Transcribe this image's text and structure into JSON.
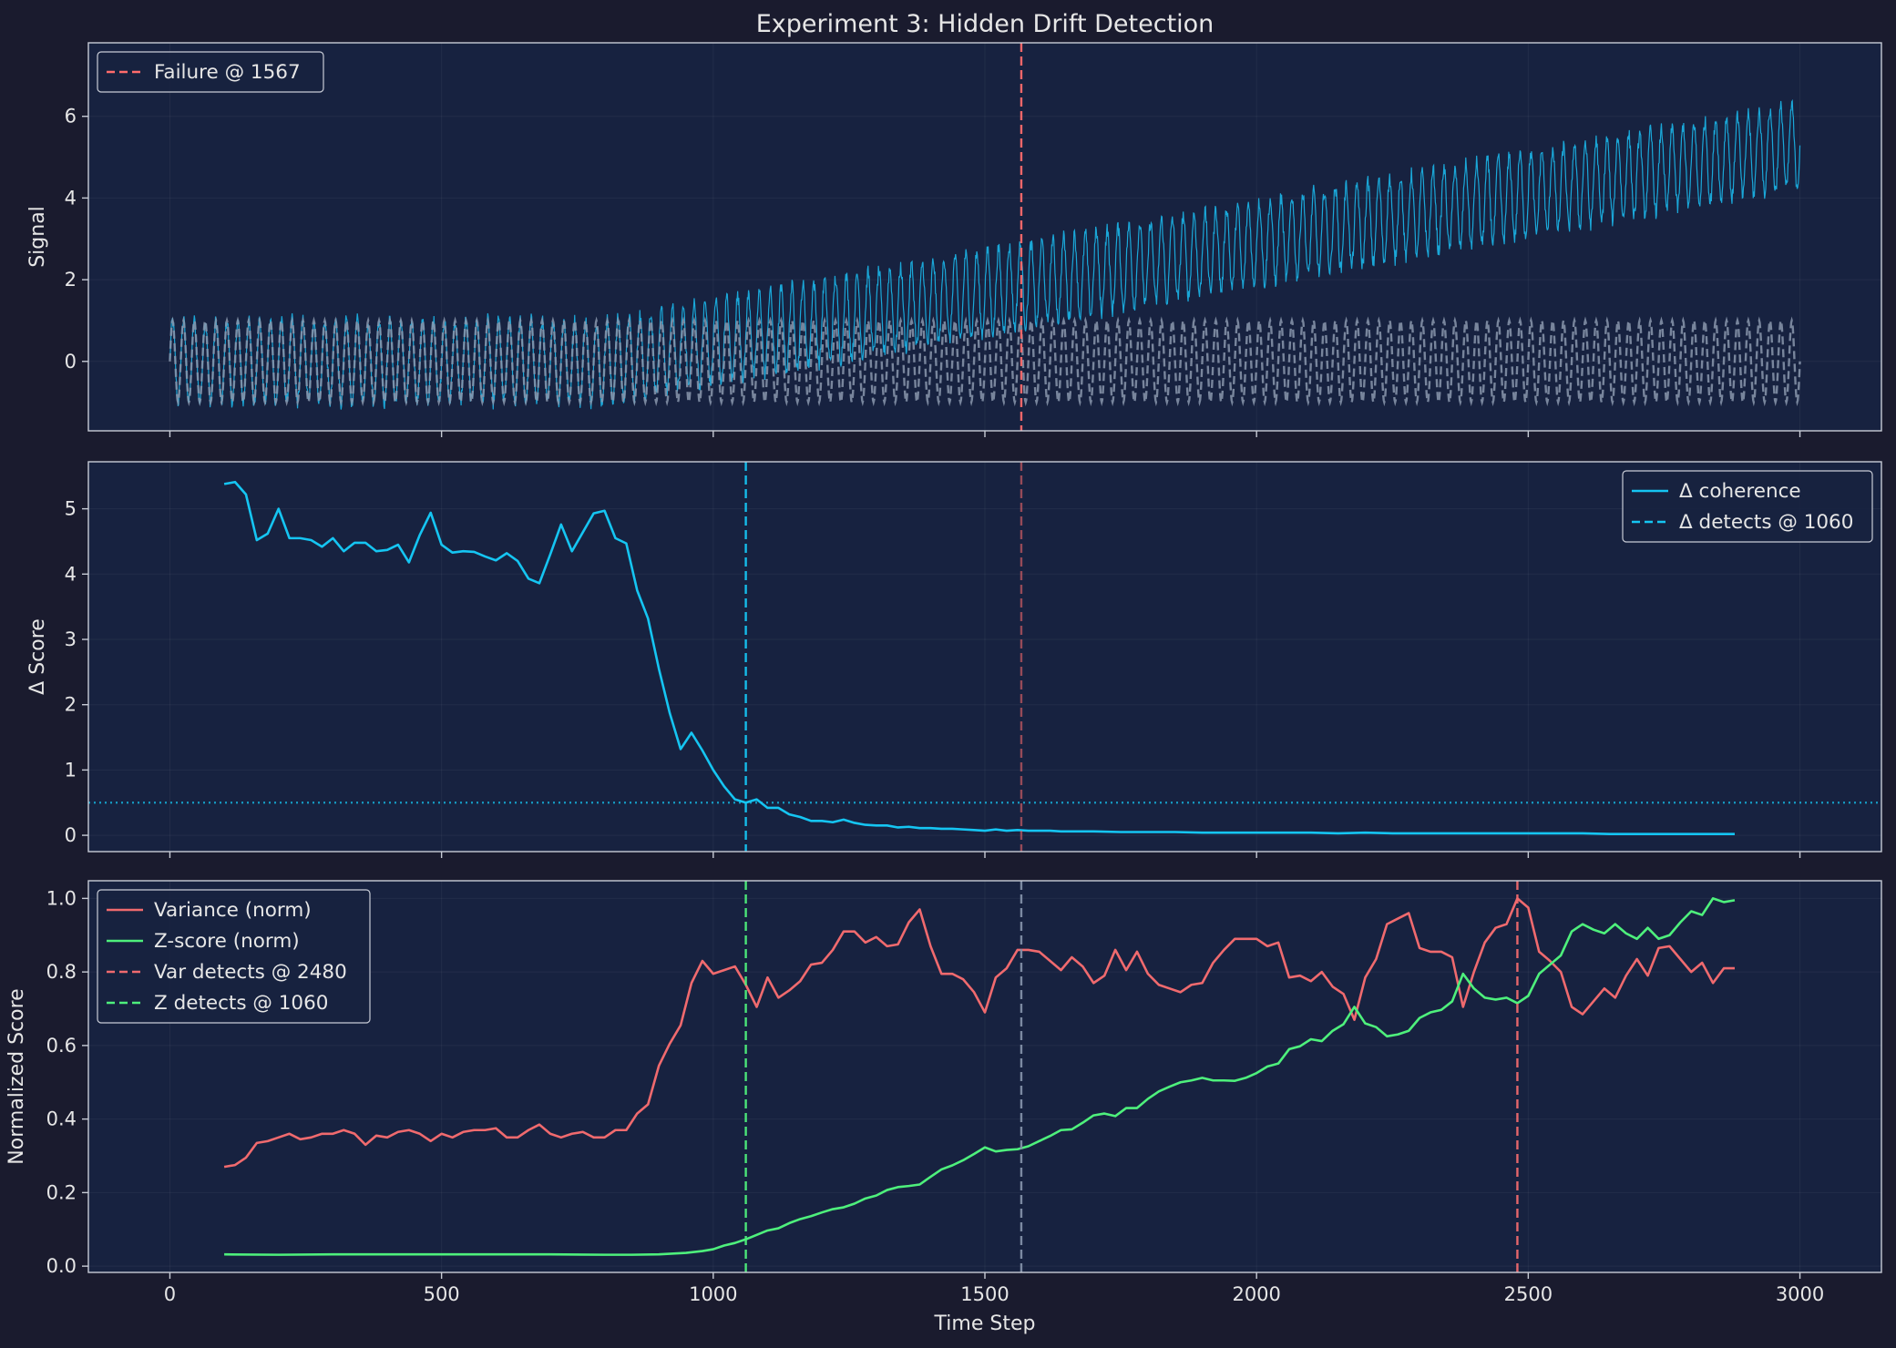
{
  "chart_data": {
    "title": "Experiment 3: Hidden Drift Detection",
    "xlabel": "Time Step",
    "xlim": [
      -150,
      3150
    ],
    "xticks": [
      0,
      500,
      1000,
      1500,
      2000,
      2500,
      3000
    ],
    "colors": {
      "background": "#1a1b2e",
      "axes": "#172240",
      "signal": "#1aa7d8",
      "baseline": "#8a97ad",
      "failure": "#ff6b6b",
      "delta": "#15c5f2",
      "variance": "#f06a6e",
      "zscore": "#4ef07c",
      "neutral": "#8290a8"
    },
    "panels": [
      {
        "type": "line",
        "ylabel": "Signal",
        "ylim": [
          -1.7,
          7.8
        ],
        "yticks": [
          0,
          2,
          4,
          6
        ],
        "legend_position": "top-left",
        "legend": [
          {
            "label": "Failure @ 1567",
            "style": "dashed",
            "color_key": "failure"
          }
        ],
        "generated_series": [
          {
            "name": "",
            "kind": "drifting-sine",
            "x_start": 0,
            "x_end": 3000,
            "period": 20,
            "amplitude": 1.0,
            "drift_start": 800,
            "drift_end": 3000,
            "drift_to": 5.3,
            "noise": 0.18,
            "style": "solid",
            "color_key": "signal"
          },
          {
            "name": "",
            "kind": "sine",
            "x_start": 0,
            "x_end": 3000,
            "period": 20,
            "amplitude": 1.0,
            "style": "dashed",
            "color_key": "baseline"
          }
        ],
        "vlines": [
          {
            "x": 1567,
            "style": "dashed",
            "color_key": "failure"
          }
        ],
        "hlines": []
      },
      {
        "type": "line",
        "ylabel": "Δ Score",
        "ylim": [
          -0.25,
          5.72
        ],
        "yticks": [
          0,
          1,
          2,
          3,
          4,
          5
        ],
        "legend_position": "top-right",
        "legend": [
          {
            "label": "Δ coherence",
            "style": "solid",
            "color_key": "delta"
          },
          {
            "label": "Δ detects @ 1060",
            "style": "dashed",
            "color_key": "delta"
          }
        ],
        "series": [
          {
            "name": "Δ coherence",
            "color_key": "delta",
            "x": [
              100,
              120,
              140,
              160,
              180,
              200,
              220,
              240,
              260,
              280,
              300,
              320,
              340,
              360,
              380,
              400,
              420,
              440,
              460,
              480,
              500,
              520,
              540,
              560,
              580,
              600,
              620,
              640,
              660,
              680,
              700,
              720,
              740,
              760,
              780,
              800,
              820,
              840,
              860,
              880,
              900,
              920,
              940,
              960,
              980,
              1000,
              1020,
              1040,
              1060,
              1080,
              1100,
              1120,
              1140,
              1160,
              1180,
              1200,
              1220,
              1240,
              1260,
              1280,
              1300,
              1320,
              1340,
              1360,
              1380,
              1400,
              1420,
              1440,
              1460,
              1480,
              1500,
              1520,
              1540,
              1560,
              1580,
              1600,
              1620,
              1640,
              1660,
              1680,
              1700,
              1750,
              1800,
              1850,
              1900,
              1950,
              2000,
              2050,
              2100,
              2150,
              2200,
              2250,
              2300,
              2350,
              2400,
              2450,
              2500,
              2550,
              2600,
              2650,
              2700,
              2750,
              2800,
              2850,
              2880
            ],
            "y": [
              5.38,
              5.41,
              5.22,
              4.52,
              4.62,
              5.0,
              4.55,
              4.55,
              4.52,
              4.42,
              4.55,
              4.35,
              4.48,
              4.48,
              4.35,
              4.37,
              4.45,
              4.18,
              4.6,
              4.94,
              4.45,
              4.33,
              4.35,
              4.34,
              4.27,
              4.21,
              4.32,
              4.2,
              3.93,
              3.86,
              4.3,
              4.76,
              4.35,
              4.64,
              4.93,
              4.97,
              4.55,
              4.47,
              3.75,
              3.32,
              2.55,
              1.87,
              1.32,
              1.57,
              1.3,
              1.0,
              0.75,
              0.55,
              0.5,
              0.55,
              0.42,
              0.42,
              0.32,
              0.28,
              0.22,
              0.22,
              0.2,
              0.24,
              0.19,
              0.16,
              0.15,
              0.15,
              0.12,
              0.13,
              0.11,
              0.11,
              0.1,
              0.1,
              0.09,
              0.08,
              0.07,
              0.09,
              0.07,
              0.08,
              0.07,
              0.07,
              0.07,
              0.06,
              0.06,
              0.06,
              0.06,
              0.05,
              0.05,
              0.05,
              0.04,
              0.04,
              0.04,
              0.04,
              0.04,
              0.03,
              0.04,
              0.03,
              0.03,
              0.03,
              0.03,
              0.03,
              0.03,
              0.03,
              0.03,
              0.02,
              0.02,
              0.02,
              0.02,
              0.02,
              0.02
            ]
          }
        ],
        "vlines": [
          {
            "x": 1060,
            "style": "dashed",
            "color_key": "delta"
          },
          {
            "x": 1567,
            "style": "dashed",
            "color_key": "failure",
            "faded": true
          }
        ],
        "hlines": [
          {
            "y": 0.5,
            "style": "dotted",
            "color_key": "delta"
          }
        ]
      },
      {
        "type": "line",
        "ylabel": "Normalized Score",
        "ylim": [
          -0.017,
          1.048
        ],
        "yticks": [
          0.0,
          0.2,
          0.4,
          0.6,
          0.8,
          1.0
        ],
        "ytick_labels": [
          "0.0",
          "0.2",
          "0.4",
          "0.6",
          "0.8",
          "1.0"
        ],
        "legend_position": "top-left",
        "legend": [
          {
            "label": "Variance (norm)",
            "style": "solid",
            "color_key": "variance"
          },
          {
            "label": "Z-score (norm)",
            "style": "solid",
            "color_key": "zscore"
          },
          {
            "label": "Var detects @ 2480",
            "style": "dashed",
            "color_key": "variance"
          },
          {
            "label": "Z detects @ 1060",
            "style": "dashed",
            "color_key": "zscore"
          }
        ],
        "series": [
          {
            "name": "Variance (norm)",
            "color_key": "variance",
            "x": [
              100,
              120,
              140,
              160,
              180,
              200,
              220,
              240,
              260,
              280,
              300,
              320,
              340,
              360,
              380,
              400,
              420,
              440,
              460,
              480,
              500,
              520,
              540,
              560,
              580,
              600,
              620,
              640,
              660,
              680,
              700,
              720,
              740,
              760,
              780,
              800,
              820,
              840,
              860,
              880,
              900,
              920,
              940,
              960,
              980,
              1000,
              1020,
              1040,
              1060,
              1080,
              1100,
              1120,
              1140,
              1160,
              1180,
              1200,
              1220,
              1240,
              1260,
              1280,
              1300,
              1320,
              1340,
              1360,
              1380,
              1400,
              1420,
              1440,
              1460,
              1480,
              1500,
              1520,
              1540,
              1560,
              1580,
              1600,
              1620,
              1640,
              1660,
              1680,
              1700,
              1720,
              1740,
              1760,
              1780,
              1800,
              1820,
              1840,
              1860,
              1880,
              1900,
              1920,
              1940,
              1960,
              1980,
              2000,
              2020,
              2040,
              2060,
              2080,
              2100,
              2120,
              2140,
              2160,
              2180,
              2200,
              2220,
              2240,
              2260,
              2280,
              2300,
              2320,
              2340,
              2360,
              2380,
              2400,
              2420,
              2440,
              2460,
              2480,
              2500,
              2520,
              2540,
              2560,
              2580,
              2600,
              2620,
              2640,
              2660,
              2680,
              2700,
              2720,
              2740,
              2760,
              2780,
              2800,
              2820,
              2840,
              2860,
              2880
            ],
            "y": [
              0.27,
              0.275,
              0.295,
              0.335,
              0.34,
              0.35,
              0.36,
              0.345,
              0.35,
              0.36,
              0.36,
              0.37,
              0.36,
              0.33,
              0.355,
              0.35,
              0.365,
              0.37,
              0.36,
              0.34,
              0.36,
              0.35,
              0.365,
              0.37,
              0.37,
              0.375,
              0.35,
              0.35,
              0.37,
              0.385,
              0.36,
              0.35,
              0.36,
              0.365,
              0.35,
              0.35,
              0.37,
              0.37,
              0.415,
              0.44,
              0.545,
              0.605,
              0.655,
              0.77,
              0.83,
              0.795,
              0.805,
              0.815,
              0.765,
              0.705,
              0.785,
              0.73,
              0.75,
              0.775,
              0.82,
              0.825,
              0.86,
              0.91,
              0.91,
              0.88,
              0.895,
              0.87,
              0.875,
              0.935,
              0.97,
              0.87,
              0.795,
              0.795,
              0.78,
              0.745,
              0.69,
              0.785,
              0.81,
              0.86,
              0.86,
              0.855,
              0.83,
              0.805,
              0.84,
              0.815,
              0.77,
              0.79,
              0.86,
              0.805,
              0.855,
              0.795,
              0.765,
              0.755,
              0.745,
              0.765,
              0.77,
              0.825,
              0.86,
              0.89,
              0.89,
              0.89,
              0.87,
              0.88,
              0.785,
              0.79,
              0.775,
              0.8,
              0.76,
              0.74,
              0.67,
              0.785,
              0.835,
              0.93,
              0.945,
              0.96,
              0.865,
              0.855,
              0.855,
              0.84,
              0.705,
              0.8,
              0.88,
              0.92,
              0.93,
              1.0,
              0.975,
              0.855,
              0.83,
              0.8,
              0.705,
              0.685,
              0.72,
              0.755,
              0.73,
              0.79,
              0.835,
              0.79,
              0.865,
              0.87,
              0.835,
              0.8,
              0.825,
              0.77,
              0.81,
              0.81
            ]
          },
          {
            "name": "Z-score (norm)",
            "color_key": "zscore",
            "x": [
              100,
              200,
              300,
              400,
              500,
              600,
              700,
              800,
              850,
              900,
              950,
              980,
              1000,
              1020,
              1040,
              1060,
              1080,
              1100,
              1120,
              1140,
              1160,
              1180,
              1200,
              1220,
              1240,
              1260,
              1280,
              1300,
              1320,
              1340,
              1360,
              1380,
              1400,
              1420,
              1440,
              1460,
              1480,
              1500,
              1520,
              1540,
              1560,
              1580,
              1600,
              1620,
              1640,
              1660,
              1680,
              1700,
              1720,
              1740,
              1760,
              1780,
              1800,
              1820,
              1840,
              1860,
              1880,
              1900,
              1920,
              1940,
              1960,
              1980,
              2000,
              2020,
              2040,
              2060,
              2080,
              2100,
              2120,
              2140,
              2160,
              2180,
              2200,
              2220,
              2240,
              2260,
              2280,
              2300,
              2320,
              2340,
              2360,
              2380,
              2400,
              2420,
              2440,
              2460,
              2480,
              2500,
              2520,
              2540,
              2560,
              2580,
              2600,
              2620,
              2640,
              2660,
              2680,
              2700,
              2720,
              2740,
              2760,
              2780,
              2800,
              2820,
              2840,
              2860,
              2880
            ],
            "y": [
              0.032,
              0.031,
              0.032,
              0.032,
              0.032,
              0.032,
              0.032,
              0.031,
              0.031,
              0.032,
              0.036,
              0.041,
              0.046,
              0.056,
              0.063,
              0.073,
              0.085,
              0.097,
              0.103,
              0.117,
              0.128,
              0.136,
              0.146,
              0.155,
              0.16,
              0.17,
              0.184,
              0.192,
              0.207,
              0.215,
              0.218,
              0.222,
              0.243,
              0.263,
              0.274,
              0.288,
              0.305,
              0.323,
              0.312,
              0.316,
              0.318,
              0.326,
              0.34,
              0.354,
              0.37,
              0.372,
              0.39,
              0.41,
              0.415,
              0.408,
              0.43,
              0.43,
              0.455,
              0.475,
              0.488,
              0.5,
              0.505,
              0.512,
              0.505,
              0.505,
              0.504,
              0.512,
              0.525,
              0.543,
              0.551,
              0.59,
              0.598,
              0.617,
              0.612,
              0.64,
              0.658,
              0.705,
              0.66,
              0.65,
              0.625,
              0.63,
              0.64,
              0.675,
              0.69,
              0.697,
              0.72,
              0.795,
              0.755,
              0.73,
              0.725,
              0.73,
              0.715,
              0.735,
              0.795,
              0.82,
              0.845,
              0.91,
              0.93,
              0.915,
              0.905,
              0.93,
              0.905,
              0.89,
              0.92,
              0.89,
              0.9,
              0.935,
              0.965,
              0.955,
              1.0,
              0.99,
              0.995
            ]
          }
        ],
        "vlines": [
          {
            "x": 1060,
            "style": "dashed",
            "color_key": "zscore"
          },
          {
            "x": 1567,
            "style": "dashed",
            "color_key": "neutral"
          },
          {
            "x": 2480,
            "style": "dashed",
            "color_key": "variance"
          }
        ],
        "hlines": []
      }
    ]
  }
}
